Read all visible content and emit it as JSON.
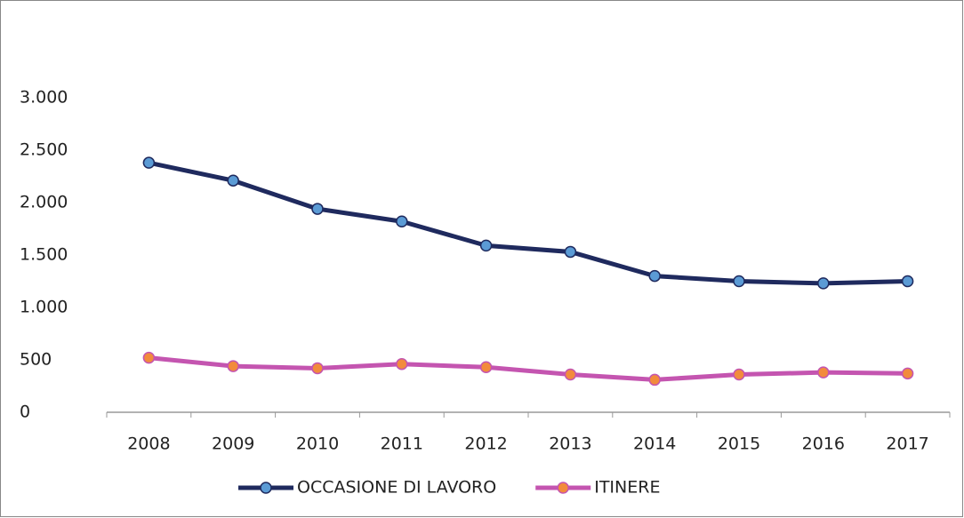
{
  "chart_data": {
    "type": "line",
    "categories": [
      "2008",
      "2009",
      "2010",
      "2011",
      "2012",
      "2013",
      "2014",
      "2015",
      "2016",
      "2017"
    ],
    "series": [
      {
        "name": "OCCASIONE DI LAVORO",
        "color": "#1f2a5e",
        "marker_color": "#5b9bd5",
        "values": [
          2380,
          2210,
          1940,
          1820,
          1590,
          1530,
          1300,
          1250,
          1230,
          1250
        ]
      },
      {
        "name": "ITINERE",
        "color": "#c455b0",
        "marker_color": "#f28b3c",
        "values": [
          520,
          440,
          420,
          460,
          430,
          360,
          310,
          360,
          380,
          370
        ]
      }
    ],
    "ylim": [
      0,
      3000
    ],
    "yticks": [
      0,
      500,
      {
        "value": 1000,
        "label": "1.000"
      },
      {
        "value": 1500,
        "label": "1.500"
      },
      {
        "value": 2000,
        "label": "2.000"
      },
      {
        "value": 2500,
        "label": "2.500"
      },
      {
        "value": 3000,
        "label": "3.000"
      }
    ],
    "grid": false,
    "legend": "bottom"
  }
}
